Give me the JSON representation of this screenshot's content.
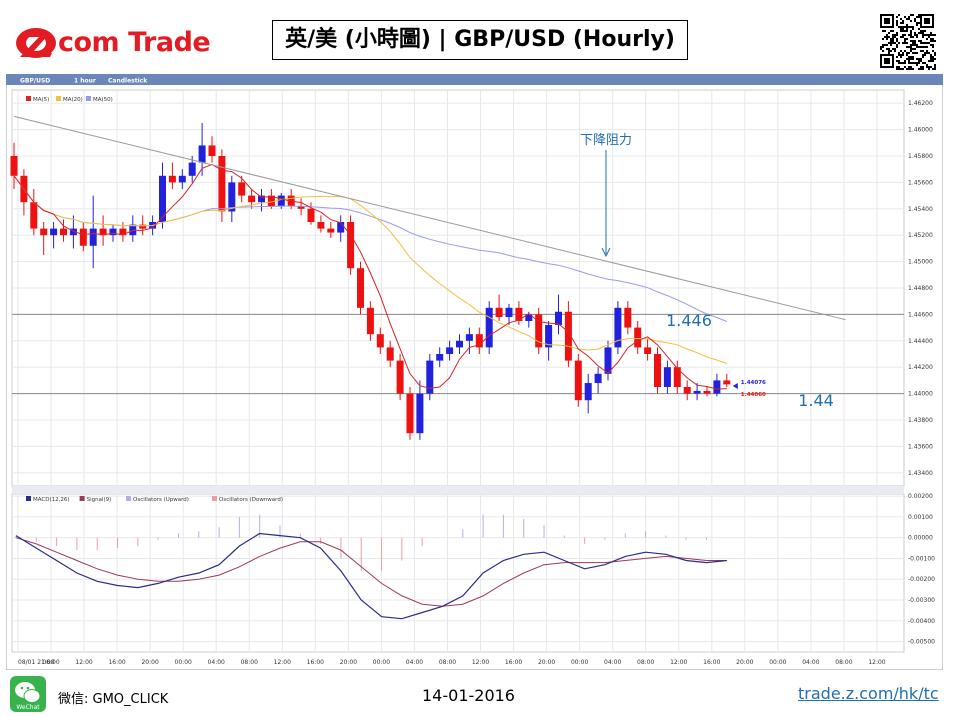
{
  "logo": {
    "text": "com Trade"
  },
  "title": "英/美 (小時圖) | GBP/USD  (Hourly)",
  "chart_header": {
    "symbol": "GBP/USD",
    "period": "1 hour",
    "style": "Candlestick"
  },
  "price_legend": [
    "MA(5)",
    "MA(20)",
    "MA(50)"
  ],
  "osc_legend": [
    "MACD(12,26)",
    "Signal(9)",
    "Oscillators (Upward)",
    "Oscillators (Downward)"
  ],
  "annotations": {
    "resistance": "下降阻力",
    "level_high": "1.446",
    "level_low": "1.44"
  },
  "last_prices": {
    "bid": "1.44076",
    "ask": "1.44060"
  },
  "footer": {
    "wechat": "微信: GMO_CLICK",
    "date": "14-01-2016",
    "link": "trade.z.com/hk/tc",
    "wechat_badge": "WeChat"
  },
  "colors": {
    "brand": "#e31b23",
    "up": "#2222dd",
    "down": "#ee1111",
    "ma5": "#dd2222",
    "ma20": "#f0c040",
    "ma50": "#9999ee",
    "link": "#1f6fb2"
  },
  "chart_data": [
    {
      "type": "candlestick",
      "title": "GBP/USD 1 hour Candlestick",
      "x_ticks": [
        "08/01 21:00",
        "06:00",
        "12:00",
        "16:00",
        "20:00",
        "00:00",
        "04:00",
        "08:00",
        "12:00",
        "16:00",
        "20:00",
        "00:00",
        "04:00",
        "08:00",
        "12:00",
        "16:00",
        "20:00",
        "00:00",
        "04:00",
        "08:00",
        "12:00",
        "16:00",
        "20:00",
        "00:00",
        "04:00",
        "08:00",
        "12:00"
      ],
      "y_ticks": [
        "1.46200",
        "1.46000",
        "1.45800",
        "1.45600",
        "1.45400",
        "1.45200",
        "1.45000",
        "1.44800",
        "1.44600",
        "1.44400",
        "1.44200",
        "1.44000",
        "1.43800",
        "1.43600",
        "1.43400"
      ],
      "ylim": [
        1.433,
        1.463
      ],
      "horizontal_levels": [
        1.446,
        1.44
      ],
      "trendline": [
        [
          1.461,
          1.4456
        ]
      ],
      "candles": [
        [
          1.458,
          1.459,
          1.4555,
          1.4565
        ],
        [
          1.4565,
          1.457,
          1.4535,
          1.4545
        ],
        [
          1.4545,
          1.4555,
          1.452,
          1.4525
        ],
        [
          1.4525,
          1.453,
          1.4505,
          1.452
        ],
        [
          1.452,
          1.453,
          1.451,
          1.4525
        ],
        [
          1.4525,
          1.4532,
          1.4515,
          1.452
        ],
        [
          1.452,
          1.4535,
          1.451,
          1.4525
        ],
        [
          1.4525,
          1.453,
          1.4508,
          1.4512
        ],
        [
          1.4512,
          1.455,
          1.4495,
          1.4525
        ],
        [
          1.4525,
          1.4535,
          1.4512,
          1.452
        ],
        [
          1.452,
          1.4528,
          1.4515,
          1.4525
        ],
        [
          1.4525,
          1.453,
          1.4515,
          1.452
        ],
        [
          1.452,
          1.4535,
          1.4515,
          1.4528
        ],
        [
          1.4528,
          1.4535,
          1.452,
          1.4525
        ],
        [
          1.4525,
          1.4535,
          1.452,
          1.453
        ],
        [
          1.453,
          1.4575,
          1.4525,
          1.4565
        ],
        [
          1.4565,
          1.4575,
          1.4555,
          1.456
        ],
        [
          1.456,
          1.457,
          1.4555,
          1.4565
        ],
        [
          1.4565,
          1.458,
          1.456,
          1.4575
        ],
        [
          1.4575,
          1.4605,
          1.4565,
          1.4588
        ],
        [
          1.4588,
          1.4595,
          1.4575,
          1.458
        ],
        [
          1.458,
          1.4585,
          1.453,
          1.4538
        ],
        [
          1.4538,
          1.4565,
          1.453,
          1.456
        ],
        [
          1.456,
          1.4565,
          1.4545,
          1.455
        ],
        [
          1.455,
          1.4555,
          1.454,
          1.4545
        ],
        [
          1.4545,
          1.4555,
          1.4538,
          1.455
        ],
        [
          1.455,
          1.4555,
          1.454,
          1.4542
        ],
        [
          1.4542,
          1.4552,
          1.454,
          1.455
        ],
        [
          1.455,
          1.4555,
          1.454,
          1.4542
        ],
        [
          1.4542,
          1.4548,
          1.4535,
          1.454
        ],
        [
          1.454,
          1.4545,
          1.4528,
          1.453
        ],
        [
          1.453,
          1.4535,
          1.4522,
          1.4525
        ],
        [
          1.4525,
          1.453,
          1.4518,
          1.4522
        ],
        [
          1.4522,
          1.4535,
          1.4515,
          1.453
        ],
        [
          1.453,
          1.4535,
          1.449,
          1.4495
        ],
        [
          1.4495,
          1.45,
          1.446,
          1.4465
        ],
        [
          1.4465,
          1.447,
          1.444,
          1.4445
        ],
        [
          1.4445,
          1.445,
          1.443,
          1.4435
        ],
        [
          1.4435,
          1.444,
          1.442,
          1.4425
        ],
        [
          1.4425,
          1.443,
          1.4395,
          1.44
        ],
        [
          1.44,
          1.4405,
          1.4365,
          1.437
        ],
        [
          1.437,
          1.441,
          1.4365,
          1.44
        ],
        [
          1.44,
          1.443,
          1.4395,
          1.4425
        ],
        [
          1.4425,
          1.4435,
          1.442,
          1.443
        ],
        [
          1.443,
          1.444,
          1.4425,
          1.4435
        ],
        [
          1.4435,
          1.4445,
          1.443,
          1.444
        ],
        [
          1.444,
          1.445,
          1.443,
          1.4445
        ],
        [
          1.4445,
          1.445,
          1.443,
          1.4435
        ],
        [
          1.4435,
          1.447,
          1.443,
          1.4465
        ],
        [
          1.4465,
          1.4475,
          1.4455,
          1.4458
        ],
        [
          1.4458,
          1.4468,
          1.4452,
          1.4465
        ],
        [
          1.4465,
          1.447,
          1.4452,
          1.4455
        ],
        [
          1.4455,
          1.4462,
          1.445,
          1.446
        ],
        [
          1.446,
          1.4465,
          1.443,
          1.4435
        ],
        [
          1.4435,
          1.4455,
          1.4425,
          1.4452
        ],
        [
          1.4452,
          1.4475,
          1.4445,
          1.4462
        ],
        [
          1.4462,
          1.447,
          1.442,
          1.4425
        ],
        [
          1.4425,
          1.443,
          1.439,
          1.4395
        ],
        [
          1.4395,
          1.4415,
          1.4385,
          1.4408
        ],
        [
          1.4408,
          1.442,
          1.44,
          1.4415
        ],
        [
          1.4415,
          1.444,
          1.441,
          1.4435
        ],
        [
          1.4435,
          1.447,
          1.443,
          1.4465
        ],
        [
          1.4465,
          1.447,
          1.4445,
          1.445
        ],
        [
          1.445,
          1.4455,
          1.443,
          1.4435
        ],
        [
          1.4435,
          1.4442,
          1.4425,
          1.443
        ],
        [
          1.443,
          1.4435,
          1.44,
          1.4405
        ],
        [
          1.4405,
          1.4425,
          1.44,
          1.442
        ],
        [
          1.442,
          1.4425,
          1.44,
          1.4405
        ],
        [
          1.4405,
          1.441,
          1.4395,
          1.44
        ],
        [
          1.44,
          1.4408,
          1.4395,
          1.4402
        ],
        [
          1.4402,
          1.4405,
          1.4398,
          1.44
        ],
        [
          1.44,
          1.4415,
          1.4398,
          1.441
        ],
        [
          1.441,
          1.4415,
          1.4405,
          1.4407
        ]
      ]
    },
    {
      "type": "line",
      "title": "MACD(12,26)",
      "y_ticks": [
        "0.00200",
        "0.00100",
        "0.00000",
        "-0.00100",
        "-0.00200",
        "-0.00300",
        "-0.00400",
        "-0.00500"
      ],
      "ylim": [
        -0.0055,
        0.0021
      ],
      "series": [
        {
          "name": "MACD(12,26)",
          "values": [
            0.0001,
            -0.0005,
            -0.0011,
            -0.0017,
            -0.0021,
            -0.0023,
            -0.0024,
            -0.0022,
            -0.0019,
            -0.0017,
            -0.0013,
            -0.0004,
            0.0002,
            0.0001,
            0.0,
            -0.0005,
            -0.0016,
            -0.003,
            -0.0038,
            -0.0039,
            -0.0036,
            -0.0033,
            -0.0028,
            -0.0017,
            -0.0011,
            -0.0008,
            -0.0007,
            -0.0011,
            -0.0015,
            -0.0013,
            -0.0009,
            -0.0007,
            -0.0008,
            -0.0011,
            -0.0012,
            -0.0011
          ]
        },
        {
          "name": "Signal(9)",
          "values": [
            0.0,
            -0.0003,
            -0.0007,
            -0.0011,
            -0.0015,
            -0.0018,
            -0.002,
            -0.0021,
            -0.0021,
            -0.002,
            -0.0018,
            -0.0014,
            -0.0009,
            -0.0005,
            -0.0002,
            -0.0002,
            -0.0006,
            -0.0014,
            -0.0022,
            -0.0028,
            -0.0032,
            -0.0033,
            -0.0032,
            -0.0028,
            -0.0022,
            -0.0017,
            -0.0013,
            -0.0012,
            -0.0012,
            -0.0012,
            -0.0011,
            -0.001,
            -0.0009,
            -0.001,
            -0.0011,
            -0.0011
          ]
        },
        {
          "name": "Oscillators",
          "values": [
            0.0001,
            -0.0002,
            -0.0004,
            -0.0006,
            -0.0006,
            -0.0005,
            -0.0004,
            -0.0001,
            0.0002,
            0.0003,
            0.0005,
            0.001,
            0.0011,
            0.0006,
            0.0002,
            -0.0003,
            -0.001,
            -0.0016,
            -0.0016,
            -0.0011,
            -0.0004,
            0.0,
            0.0004,
            0.0011,
            0.0011,
            0.0009,
            0.0006,
            0.0001,
            -0.0003,
            -0.0001,
            0.0002,
            0.0003,
            0.0001,
            -0.0001,
            -0.0001,
            0.0
          ]
        }
      ]
    }
  ]
}
